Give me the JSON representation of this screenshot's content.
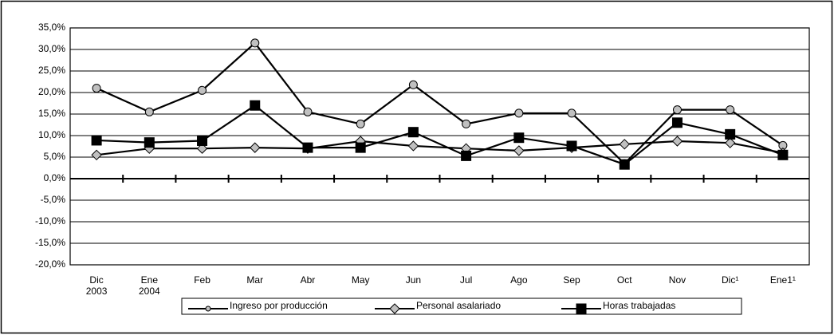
{
  "chart_data": {
    "type": "line",
    "categories": [
      [
        "Dic",
        "2003"
      ],
      [
        "Ene",
        "2004"
      ],
      [
        "Feb"
      ],
      [
        "Mar"
      ],
      [
        "Abr"
      ],
      [
        "May"
      ],
      [
        "Jun"
      ],
      [
        "Jul"
      ],
      [
        "Ago"
      ],
      [
        "Sep"
      ],
      [
        "Oct"
      ],
      [
        "Nov"
      ],
      [
        "Dic¹"
      ],
      [
        "Ene1¹"
      ]
    ],
    "series": [
      {
        "name": "Ingreso por producción",
        "color": "#000000",
        "marker": "circle",
        "marker_color": "#c0c0c0",
        "values": [
          21.0,
          15.5,
          20.5,
          31.5,
          15.5,
          12.7,
          21.8,
          12.7,
          15.2,
          15.2,
          3.5,
          16.0,
          16.0,
          7.7
        ]
      },
      {
        "name": "Personal asalariado",
        "color": "#000000",
        "marker": "diamond",
        "marker_color": "#c0c0c0",
        "values": [
          5.5,
          7.0,
          7.0,
          7.2,
          7.0,
          8.7,
          7.6,
          7.0,
          6.5,
          7.2,
          8.0,
          8.7,
          8.3,
          6.0
        ]
      },
      {
        "name": "Horas trabajadas",
        "color": "#000000",
        "marker": "square",
        "marker_color": "#000000",
        "values": [
          8.9,
          8.4,
          8.8,
          17.0,
          7.2,
          7.2,
          10.8,
          5.3,
          9.5,
          7.6,
          3.3,
          13.0,
          10.3,
          5.5
        ]
      }
    ],
    "ylim": [
      -20,
      35
    ],
    "yticks": [
      {
        "value": -20,
        "label": "-20,0%"
      },
      {
        "value": -15,
        "label": "-15,0%"
      },
      {
        "value": -10,
        "label": "-10,0%"
      },
      {
        "value": -5,
        "label": "-5,0%"
      },
      {
        "value": 0,
        "label": "0,0%"
      },
      {
        "value": 5,
        "label": "5,0%"
      },
      {
        "value": 10,
        "label": "10,0%"
      },
      {
        "value": 15,
        "label": "15,0%"
      },
      {
        "value": 20,
        "label": "20,0%"
      },
      {
        "value": 25,
        "label": "25,0%"
      },
      {
        "value": 30,
        "label": "30,0%"
      },
      {
        "value": 35,
        "label": "35,0%"
      }
    ],
    "grid": true,
    "legend": "bottom"
  }
}
